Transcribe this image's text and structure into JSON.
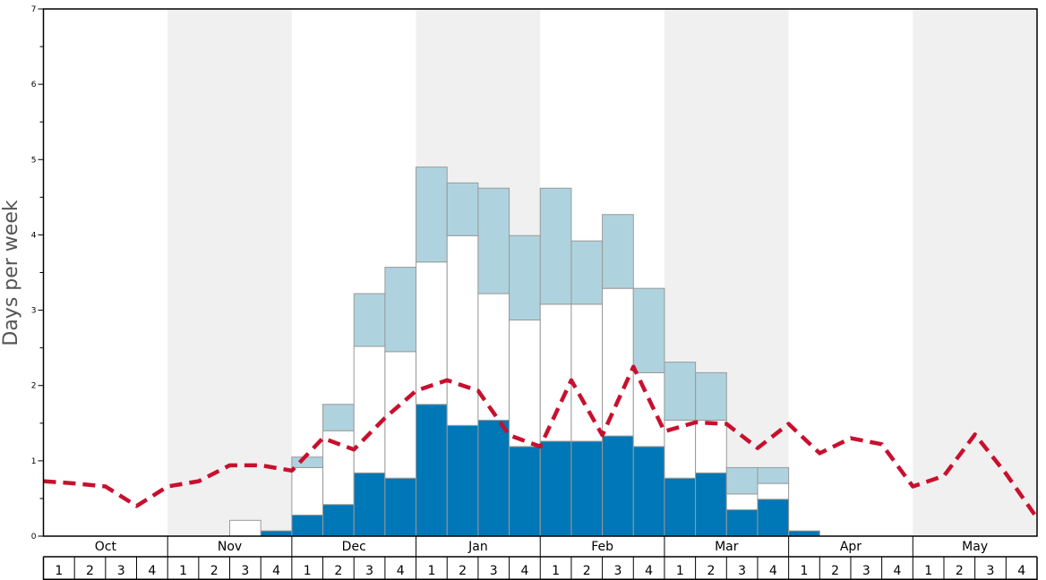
{
  "chart_data": {
    "type": "bar",
    "ylabel": "Days per week",
    "ylim": [
      0,
      7
    ],
    "yticks": [
      "0",
      "1",
      "2",
      "3",
      "4",
      "5",
      "6",
      "7"
    ],
    "months": [
      "Oct",
      "Nov",
      "Dec",
      "Jan",
      "Feb",
      "Mar",
      "Apr",
      "May"
    ],
    "week_labels": [
      "1",
      "2",
      "3",
      "4"
    ],
    "stacked": true,
    "colors": {
      "dark": "#0077b6",
      "white": "#ffffff",
      "light": "#aed3df",
      "line": "#c8102e",
      "band": "#f0f0f0",
      "bar_edge": "#9a9a9a"
    },
    "series": [
      {
        "values": [
          0,
          0,
          0,
          0,
          0,
          0,
          0,
          0.07,
          0.28,
          0.42,
          0.84,
          0.77,
          1.75,
          1.47,
          1.54,
          1.19,
          1.26,
          1.26,
          1.33,
          1.19,
          0.77,
          0.84,
          0.35,
          0.49,
          0.07,
          0,
          0,
          0,
          0,
          0,
          0,
          0
        ]
      },
      {
        "values": [
          0,
          0,
          0,
          0,
          0,
          0,
          0.21,
          0,
          0.63,
          0.98,
          1.68,
          1.68,
          1.89,
          2.52,
          1.68,
          1.68,
          1.82,
          1.82,
          1.96,
          0.98,
          0.77,
          0.7,
          0.21,
          0.21,
          0,
          0,
          0,
          0,
          0,
          0,
          0,
          0
        ]
      },
      {
        "values": [
          0,
          0,
          0,
          0,
          0,
          0,
          0,
          0,
          0.14,
          0.35,
          0.7,
          1.12,
          1.26,
          0.7,
          1.4,
          1.12,
          1.54,
          0.84,
          0.98,
          1.12,
          0.77,
          0.63,
          0.35,
          0.21,
          0,
          0,
          0,
          0,
          0,
          0,
          0,
          0
        ]
      }
    ],
    "line": {
      "style": "dashed",
      "values": [
        0.73,
        0.7,
        0.66,
        0.4,
        0.66,
        0.73,
        0.94,
        0.94,
        0.87,
        1.3,
        1.15,
        1.57,
        1.93,
        2.07,
        1.93,
        1.34,
        1.19,
        2.07,
        1.34,
        2.25,
        1.39,
        1.51,
        1.49,
        1.17,
        1.49,
        1.1,
        1.3,
        1.22,
        0.66,
        0.8,
        1.35,
        0.83,
        0.24
      ]
    }
  }
}
